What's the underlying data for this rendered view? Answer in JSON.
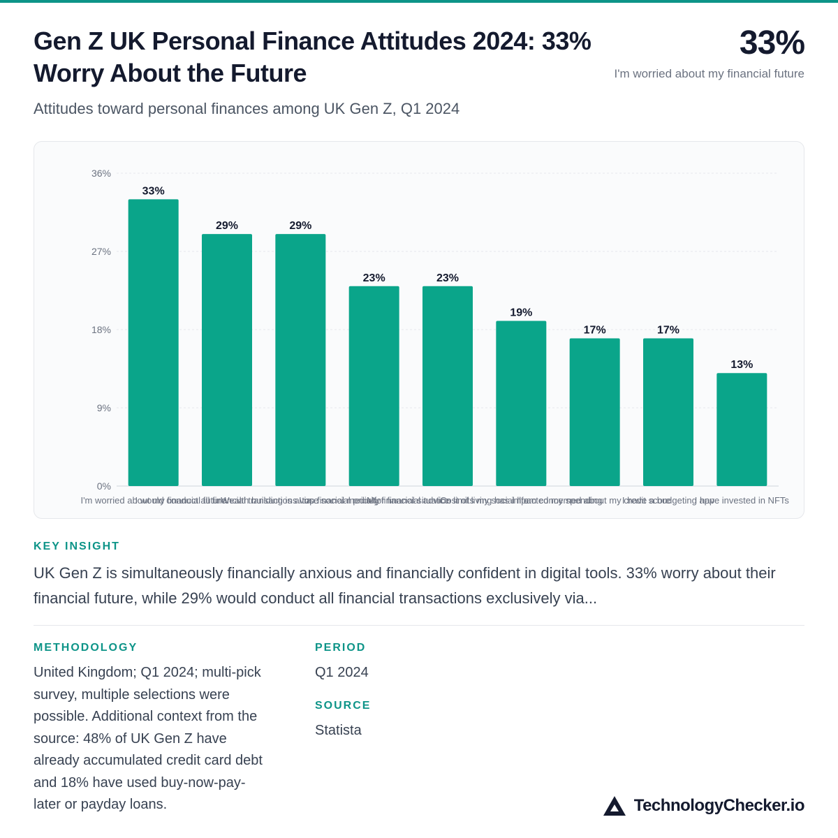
{
  "header": {
    "title": "Gen Z UK Personal Finance Attitudes 2024: 33% Worry About the Future",
    "subtitle": "Attitudes toward personal finances among UK Gen Z, Q1 2024",
    "stat_value": "33%",
    "stat_label": "I'm worried about my financial future"
  },
  "chart_data": {
    "type": "bar",
    "categories": [
      "I'm worried about my financial future",
      "I would conduct all financial transactions via...",
      "Wealth building is a top financial priority",
      "I use social media for financial advice",
      "My financial situation limits my social life",
      "Cost of living has impacted my spending",
      "I am concerned about my credit score",
      "I have a budgeting app",
      "I have invested in NFTs"
    ],
    "values": [
      33,
      29,
      29,
      23,
      23,
      19,
      17,
      17,
      13
    ],
    "value_labels": [
      "33%",
      "29%",
      "29%",
      "23%",
      "23%",
      "19%",
      "17%",
      "17%",
      "13%"
    ],
    "y_ticks": [
      "0%",
      "9%",
      "18%",
      "27%",
      "36%"
    ],
    "ylim": [
      0,
      36
    ],
    "grid": true,
    "bar_color": "#0aa58a"
  },
  "key_insight": {
    "heading": "KEY INSIGHT",
    "text": "UK Gen Z is simultaneously financially anxious and financially confident in digital tools. 33% worry about their financial future, while 29% would conduct all financial transactions exclusively via..."
  },
  "methodology": {
    "heading": "METHODOLOGY",
    "lines": [
      "United Kingdom; Q1 2024; multi-pick",
      "survey, multiple selections were",
      "possible. Additional context from the",
      "source: 48% of UK Gen Z have",
      "already accumulated credit card debt",
      "and 18% have used buy-now-pay-",
      "later or payday loans."
    ]
  },
  "period": {
    "heading": "PERIOD",
    "value": "Q1 2024"
  },
  "source": {
    "heading": "SOURCE",
    "value": "Statista"
  },
  "brand": {
    "name": "TechnologyChecker.io",
    "icon": "triangle-logo-icon"
  }
}
